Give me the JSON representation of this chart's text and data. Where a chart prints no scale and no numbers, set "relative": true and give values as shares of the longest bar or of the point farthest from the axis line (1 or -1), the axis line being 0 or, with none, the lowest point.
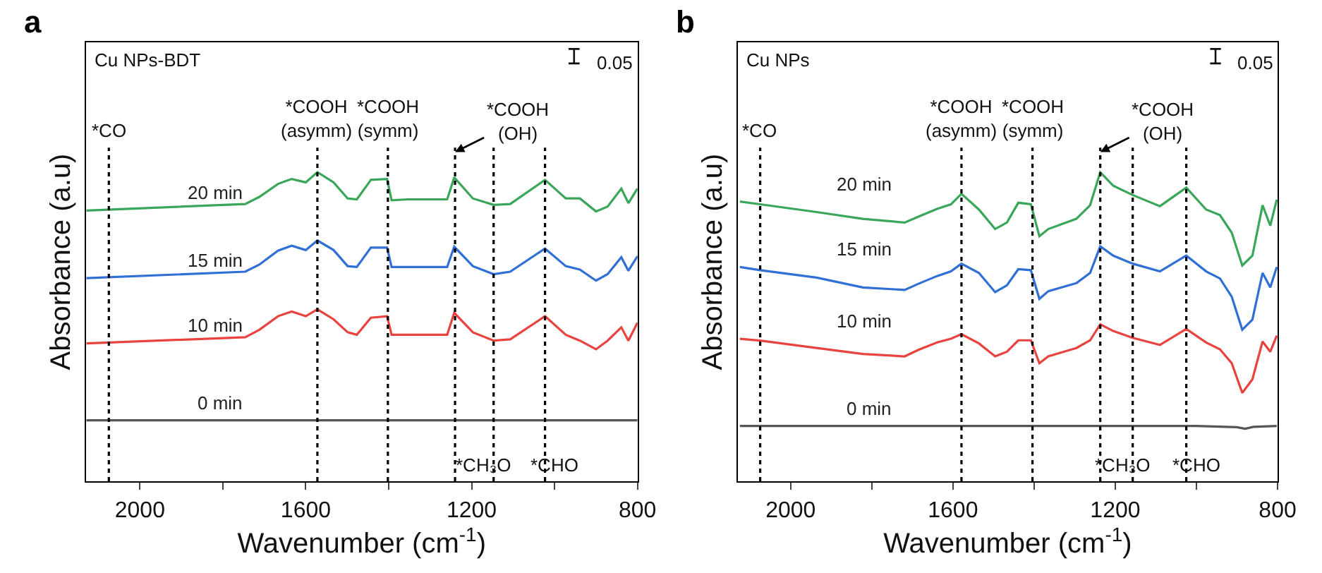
{
  "chart_data": [
    {
      "type": "line",
      "title": "a",
      "subtitle": "Cu NPs-BDT",
      "xlabel": "Wavenumber (cm$^{-1}$)",
      "ylabel": "Absorbance (a.u)",
      "relative": true,
      "xlim": [
        2130,
        800
      ],
      "xticks": [
        2000,
        {
          "value": 1800,
          "label": null
        },
        1600,
        {
          "value": 1400,
          "label": null
        },
        1200,
        {
          "value": 1000,
          "label": null
        },
        800
      ],
      "legend": false,
      "marker": "none",
      "line_style": "solid",
      "series": [
        {
          "name": "20 min",
          "color": "#3aa65a",
          "x": [
            2129,
            1746,
            1712,
            1667,
            1634,
            1600,
            1572,
            1533,
            1499,
            1477,
            1443,
            1404,
            1393,
            1354,
            1259,
            1242,
            1197,
            1147,
            1107,
            1023,
            973,
            939,
            900,
            872,
            839,
            822,
            800
          ],
          "values": [
            0.876,
            0.897,
            0.92,
            0.962,
            0.978,
            0.967,
            1.0,
            0.967,
            0.915,
            0.912,
            0.975,
            0.978,
            0.909,
            0.912,
            0.912,
            0.983,
            0.915,
            0.894,
            0.897,
            0.975,
            0.915,
            0.915,
            0.873,
            0.889,
            0.947,
            0.9,
            0.947
          ]
        },
        {
          "name": "15 min",
          "color": "#2f6fd6",
          "x": [
            2129,
            1746,
            1712,
            1667,
            1634,
            1600,
            1572,
            1533,
            1499,
            1477,
            1443,
            1404,
            1393,
            1354,
            1259,
            1242,
            1197,
            1147,
            1107,
            1023,
            973,
            939,
            900,
            872,
            839,
            822,
            800
          ],
          "values": [
            0.657,
            0.678,
            0.701,
            0.746,
            0.762,
            0.748,
            0.779,
            0.748,
            0.696,
            0.693,
            0.756,
            0.756,
            0.693,
            0.693,
            0.693,
            0.759,
            0.696,
            0.67,
            0.678,
            0.753,
            0.696,
            0.685,
            0.649,
            0.67,
            0.725,
            0.681,
            0.728
          ]
        },
        {
          "name": "10 min",
          "color": "#e8433f",
          "x": [
            2129,
            1746,
            1712,
            1667,
            1634,
            1600,
            1572,
            1533,
            1499,
            1477,
            1443,
            1404,
            1393,
            1354,
            1259,
            1242,
            1197,
            1147,
            1107,
            1023,
            973,
            939,
            900,
            872,
            839,
            822,
            800
          ],
          "values": [
            0.446,
            0.466,
            0.49,
            0.534,
            0.549,
            0.534,
            0.556,
            0.524,
            0.482,
            0.474,
            0.529,
            0.534,
            0.474,
            0.474,
            0.474,
            0.545,
            0.482,
            0.455,
            0.459,
            0.534,
            0.474,
            0.455,
            0.427,
            0.455,
            0.498,
            0.455,
            0.513
          ]
        },
        {
          "name": "0 min",
          "color": "#555555",
          "x": [
            2129,
            1600,
            1200,
            800
          ],
          "values": [
            0.197,
            0.197,
            0.197,
            0.197
          ]
        }
      ],
      "ref_lines": [
        {
          "axis": "x",
          "value": 2075,
          "line_style": "dotted",
          "color": "#000000"
        },
        {
          "axis": "x",
          "value": 1572,
          "line_style": "dotted",
          "color": "#000000"
        },
        {
          "axis": "x",
          "value": 1402,
          "line_style": "dotted",
          "color": "#000000"
        },
        {
          "axis": "x",
          "value": 1240,
          "line_style": "dotted",
          "color": "#000000"
        },
        {
          "axis": "x",
          "value": 1147,
          "line_style": "dotted",
          "color": "#000000"
        },
        {
          "axis": "x",
          "value": 1023,
          "line_style": "dotted",
          "color": "#000000"
        }
      ],
      "annotations": [
        "*CO",
        "*COOH\n(asymm)",
        "*COOH\n(symm)",
        "*COOH\n(OH)",
        "*CH₃O",
        "*CHO",
        "0.05"
      ]
    },
    {
      "type": "line",
      "title": "b",
      "subtitle": "Cu NPs",
      "xlabel": "Wavenumber (cm$^{-1}$)",
      "ylabel": "Absorbance (a.u)",
      "relative": true,
      "xlim": [
        2130,
        800
      ],
      "xticks": [
        2000,
        {
          "value": 1800,
          "label": null
        },
        1600,
        {
          "value": 1400,
          "label": null
        },
        1200,
        {
          "value": 1000,
          "label": null
        },
        800
      ],
      "legend": false,
      "marker": "none",
      "line_style": "solid",
      "series": [
        {
          "name": "20 min",
          "color": "#3aa65a",
          "x": [
            2125,
            2075,
            1936,
            1822,
            1719,
            1685,
            1639,
            1605,
            1579,
            1536,
            1496,
            1467,
            1439,
            1408,
            1387,
            1365,
            1296,
            1262,
            1237,
            1205,
            1157,
            1090,
            1025,
            976,
            942,
            913,
            887,
            862,
            837,
            818,
            802
          ],
          "values": [
            0.905,
            0.896,
            0.871,
            0.849,
            0.837,
            0.856,
            0.881,
            0.896,
            0.93,
            0.879,
            0.816,
            0.837,
            0.901,
            0.896,
            0.793,
            0.816,
            0.849,
            0.893,
            1.0,
            0.956,
            0.926,
            0.89,
            0.95,
            0.879,
            0.861,
            0.804,
            0.698,
            0.73,
            0.893,
            0.827,
            0.911
          ]
        },
        {
          "name": "15 min",
          "color": "#2f6fd6",
          "x": [
            2125,
            2075,
            1936,
            1822,
            1719,
            1685,
            1639,
            1605,
            1579,
            1536,
            1496,
            1467,
            1439,
            1408,
            1387,
            1365,
            1296,
            1262,
            1237,
            1205,
            1157,
            1090,
            1025,
            976,
            942,
            913,
            887,
            862,
            837,
            818,
            802
          ],
          "values": [
            0.693,
            0.683,
            0.659,
            0.627,
            0.619,
            0.639,
            0.664,
            0.679,
            0.704,
            0.674,
            0.612,
            0.634,
            0.686,
            0.683,
            0.59,
            0.615,
            0.641,
            0.674,
            0.76,
            0.73,
            0.704,
            0.679,
            0.73,
            0.679,
            0.656,
            0.597,
            0.49,
            0.523,
            0.674,
            0.627,
            0.693
          ]
        },
        {
          "name": "10 min",
          "color": "#e8433f",
          "x": [
            2125,
            2075,
            1936,
            1822,
            1719,
            1685,
            1639,
            1605,
            1579,
            1536,
            1496,
            1467,
            1439,
            1408,
            1387,
            1365,
            1296,
            1262,
            1237,
            1205,
            1157,
            1090,
            1025,
            976,
            942,
            913,
            887,
            862,
            837,
            818,
            802
          ],
          "values": [
            0.461,
            0.455,
            0.431,
            0.412,
            0.404,
            0.425,
            0.449,
            0.461,
            0.476,
            0.446,
            0.404,
            0.419,
            0.456,
            0.456,
            0.382,
            0.404,
            0.431,
            0.456,
            0.508,
            0.486,
            0.464,
            0.441,
            0.493,
            0.449,
            0.427,
            0.382,
            0.286,
            0.33,
            0.452,
            0.419,
            0.471
          ]
        },
        {
          "name": "0 min",
          "color": "#555555",
          "x": [
            2125,
            1600,
            1200,
            1000,
            900,
            880,
            860,
            802
          ],
          "values": [
            0.179,
            0.179,
            0.179,
            0.179,
            0.175,
            0.17,
            0.176,
            0.179
          ]
        }
      ],
      "ref_lines": [
        {
          "axis": "x",
          "value": 2075,
          "line_style": "dotted",
          "color": "#000000"
        },
        {
          "axis": "x",
          "value": 1579,
          "line_style": "dotted",
          "color": "#000000"
        },
        {
          "axis": "x",
          "value": 1404,
          "line_style": "dotted",
          "color": "#000000"
        },
        {
          "axis": "x",
          "value": 1237,
          "line_style": "dotted",
          "color": "#000000"
        },
        {
          "axis": "x",
          "value": 1157,
          "line_style": "dotted",
          "color": "#000000"
        },
        {
          "axis": "x",
          "value": 1025,
          "line_style": "dotted",
          "color": "#000000"
        }
      ],
      "annotations": [
        "*CO",
        "*COOH\n(asymm)",
        "*COOH\n(symm)",
        "*COOH\n(OH)",
        "*CH₃O",
        "*CHO",
        "0.05"
      ]
    }
  ]
}
